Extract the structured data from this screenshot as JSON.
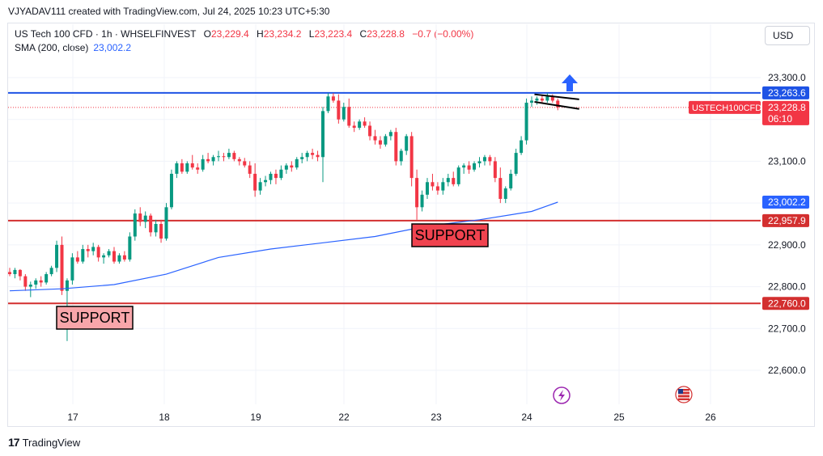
{
  "caption": "VJYADAV111 created with TradingView.com, Jul 24, 2025 10:23 UTC+5:30",
  "legend": {
    "symbol": "US Tech 100 CFD · 1h · WHSELFINVEST",
    "open_label": "O",
    "open": "23,229.4",
    "high_label": "H",
    "high": "23,234.2",
    "low_label": "L",
    "low": "23,223.4",
    "close_label": "C",
    "close": "23,228.8",
    "change": "−0.7 (−0.00%)",
    "sma_label": "SMA (200, close)",
    "sma_value": "23,002.2"
  },
  "currency_button": "USD",
  "footer_brand": "TradingView",
  "colors": {
    "up": "#089981",
    "down": "#f23645",
    "sma": "#2962ff",
    "support": "#d32f2f",
    "resistance": "#1e53e5"
  },
  "chart_data": {
    "type": "candlestick",
    "y_axis": {
      "ticks": [
        23300,
        23100,
        22900,
        22800,
        22700,
        22600
      ],
      "tick_labels": [
        "23,300.0",
        "23,100.0",
        "22,900.0",
        "22,800.0",
        "22,700.0",
        "22,600.0"
      ]
    },
    "x_axis": {
      "tick_labels": [
        "17",
        "18",
        "19",
        "22",
        "23",
        "24",
        "25",
        "26"
      ]
    },
    "price_tags": [
      {
        "label": "23,263.6",
        "value": 23263.6,
        "kind": "resistance"
      },
      {
        "label": "23,228.8",
        "sub": "06:10",
        "value": 23228.8,
        "kind": "last",
        "symbol": "USTECH100CFD"
      },
      {
        "label": "23,002.2",
        "value": 23002.2,
        "kind": "sma"
      },
      {
        "label": "22,957.9",
        "value": 22957.9,
        "kind": "support"
      },
      {
        "label": "22,760.0",
        "value": 22760.0,
        "kind": "support"
      }
    ],
    "horizontal_lines": [
      {
        "value": 23263.6,
        "color": "#1e53e5"
      },
      {
        "value": 22957.9,
        "color": "#d32f2f"
      },
      {
        "value": 22760.0,
        "color": "#d32f2f"
      }
    ],
    "annotations": [
      {
        "text": "SUPPORT",
        "value": 22760.0,
        "style": "light"
      },
      {
        "text": "SUPPORT",
        "value": 22957.9,
        "style": "dark"
      }
    ],
    "ohlc": [
      [
        22835,
        22845,
        22825,
        22830
      ],
      [
        22830,
        22845,
        22820,
        22840
      ],
      [
        22840,
        22842,
        22815,
        22825
      ],
      [
        22825,
        22830,
        22790,
        22800
      ],
      [
        22800,
        22812,
        22775,
        22805
      ],
      [
        22805,
        22820,
        22795,
        22815
      ],
      [
        22815,
        22825,
        22800,
        22810
      ],
      [
        22810,
        22835,
        22805,
        22830
      ],
      [
        22830,
        22850,
        22825,
        22845
      ],
      [
        22845,
        22910,
        22835,
        22900
      ],
      [
        22900,
        22920,
        22780,
        22790
      ],
      [
        22790,
        22820,
        22670,
        22815
      ],
      [
        22815,
        22880,
        22805,
        22870
      ],
      [
        22870,
        22885,
        22855,
        22860
      ],
      [
        22860,
        22900,
        22855,
        22890
      ],
      [
        22890,
        22900,
        22870,
        22885
      ],
      [
        22885,
        22905,
        22875,
        22895
      ],
      [
        22895,
        22900,
        22860,
        22870
      ],
      [
        22870,
        22880,
        22855,
        22875
      ],
      [
        22875,
        22890,
        22870,
        22885
      ],
      [
        22885,
        22895,
        22855,
        22860
      ],
      [
        22860,
        22880,
        22855,
        22875
      ],
      [
        22875,
        22885,
        22860,
        22865
      ],
      [
        22865,
        22930,
        22860,
        22920
      ],
      [
        22920,
        22985,
        22910,
        22975
      ],
      [
        22975,
        22990,
        22945,
        22955
      ],
      [
        22955,
        22980,
        22940,
        22970
      ],
      [
        22970,
        22975,
        22920,
        22930
      ],
      [
        22930,
        22960,
        22920,
        22950
      ],
      [
        22950,
        22960,
        22905,
        22915
      ],
      [
        22915,
        23000,
        22910,
        22990
      ],
      [
        22990,
        23080,
        22985,
        23070
      ],
      [
        23070,
        23100,
        23060,
        23095
      ],
      [
        23095,
        23105,
        23070,
        23075
      ],
      [
        23075,
        23100,
        23070,
        23095
      ],
      [
        23095,
        23115,
        23080,
        23085
      ],
      [
        23085,
        23095,
        23070,
        23080
      ],
      [
        23080,
        23115,
        23075,
        23105
      ],
      [
        23105,
        23120,
        23095,
        23100
      ],
      [
        23100,
        23115,
        23090,
        23110
      ],
      [
        23110,
        23125,
        23100,
        23112
      ],
      [
        23112,
        23120,
        23100,
        23110
      ],
      [
        23110,
        23130,
        23105,
        23120
      ],
      [
        23120,
        23125,
        23100,
        23105
      ],
      [
        23105,
        23110,
        23090,
        23100
      ],
      [
        23100,
        23108,
        23085,
        23090
      ],
      [
        23090,
        23100,
        23060,
        23070
      ],
      [
        23070,
        23095,
        23015,
        23030
      ],
      [
        23030,
        23060,
        23020,
        23050
      ],
      [
        23050,
        23065,
        23040,
        23055
      ],
      [
        23055,
        23075,
        23045,
        23070
      ],
      [
        23070,
        23080,
        23045,
        23060
      ],
      [
        23060,
        23090,
        23055,
        23080
      ],
      [
        23080,
        23095,
        23070,
        23090
      ],
      [
        23090,
        23100,
        23075,
        23085
      ],
      [
        23085,
        23110,
        23080,
        23105
      ],
      [
        23105,
        23120,
        23095,
        23110
      ],
      [
        23110,
        23125,
        23100,
        23120
      ],
      [
        23120,
        23130,
        23105,
        23115
      ],
      [
        23115,
        23125,
        23100,
        23110
      ],
      [
        23110,
        23230,
        23050,
        23220
      ],
      [
        23220,
        23263,
        23215,
        23255
      ],
      [
        23255,
        23263,
        23240,
        23245
      ],
      [
        23245,
        23260,
        23190,
        23200
      ],
      [
        23200,
        23240,
        23195,
        23230
      ],
      [
        23230,
        23250,
        23180,
        23185
      ],
      [
        23185,
        23195,
        23170,
        23180
      ],
      [
        23180,
        23200,
        23175,
        23195
      ],
      [
        23195,
        23205,
        23180,
        23185
      ],
      [
        23185,
        23195,
        23150,
        23160
      ],
      [
        23160,
        23175,
        23140,
        23150
      ],
      [
        23150,
        23160,
        23130,
        23140
      ],
      [
        23140,
        23165,
        23135,
        23160
      ],
      [
        23160,
        23175,
        23150,
        23170
      ],
      [
        23170,
        23180,
        23090,
        23100
      ],
      [
        23100,
        23130,
        23090,
        23125
      ],
      [
        23125,
        23165,
        23115,
        23160
      ],
      [
        23160,
        23170,
        23040,
        23060
      ],
      [
        23060,
        23080,
        22960,
        22990
      ],
      [
        22990,
        23030,
        22980,
        23020
      ],
      [
        23020,
        23060,
        23010,
        23050
      ],
      [
        23050,
        23070,
        23030,
        23040
      ],
      [
        23040,
        23050,
        23020,
        23030
      ],
      [
        23030,
        23060,
        23020,
        23050
      ],
      [
        23050,
        23070,
        23040,
        23060
      ],
      [
        23060,
        23075,
        23040,
        23045
      ],
      [
        23045,
        23090,
        23040,
        23085
      ],
      [
        23085,
        23095,
        23070,
        23090
      ],
      [
        23090,
        23100,
        23070,
        23080
      ],
      [
        23080,
        23100,
        23075,
        23095
      ],
      [
        23095,
        23110,
        23085,
        23100
      ],
      [
        23100,
        23115,
        23090,
        23110
      ],
      [
        23110,
        23115,
        23090,
        23100
      ],
      [
        23100,
        23110,
        23050,
        23060
      ],
      [
        23060,
        23085,
        23000,
        23010
      ],
      [
        23010,
        23040,
        23000,
        23035
      ],
      [
        23035,
        23080,
        23030,
        23070
      ],
      [
        23070,
        23130,
        23065,
        23120
      ],
      [
        23120,
        23160,
        23115,
        23150
      ],
      [
        23150,
        23250,
        23140,
        23240
      ],
      [
        23240,
        23255,
        23230,
        23245
      ],
      [
        23245,
        23255,
        23235,
        23250
      ],
      [
        23250,
        23258,
        23240,
        23245
      ],
      [
        23245,
        23263,
        23240,
        23255
      ],
      [
        23255,
        23260,
        23240,
        23245
      ],
      [
        23245,
        23250,
        23222,
        23229
      ]
    ],
    "sma": [
      [
        0,
        22790
      ],
      [
        10,
        22795
      ],
      [
        20,
        22805
      ],
      [
        30,
        22830
      ],
      [
        40,
        22870
      ],
      [
        50,
        22890
      ],
      [
        60,
        22905
      ],
      [
        70,
        22920
      ],
      [
        80,
        22945
      ],
      [
        90,
        22960
      ],
      [
        100,
        22980
      ],
      [
        105,
        23002.2
      ]
    ],
    "flag": {
      "upper": [
        [
          101,
          23260
        ],
        [
          106,
          23248
        ]
      ],
      "lower": [
        [
          101,
          23242
        ],
        [
          106,
          23225
        ]
      ]
    },
    "arrow": {
      "direction": "up"
    }
  }
}
